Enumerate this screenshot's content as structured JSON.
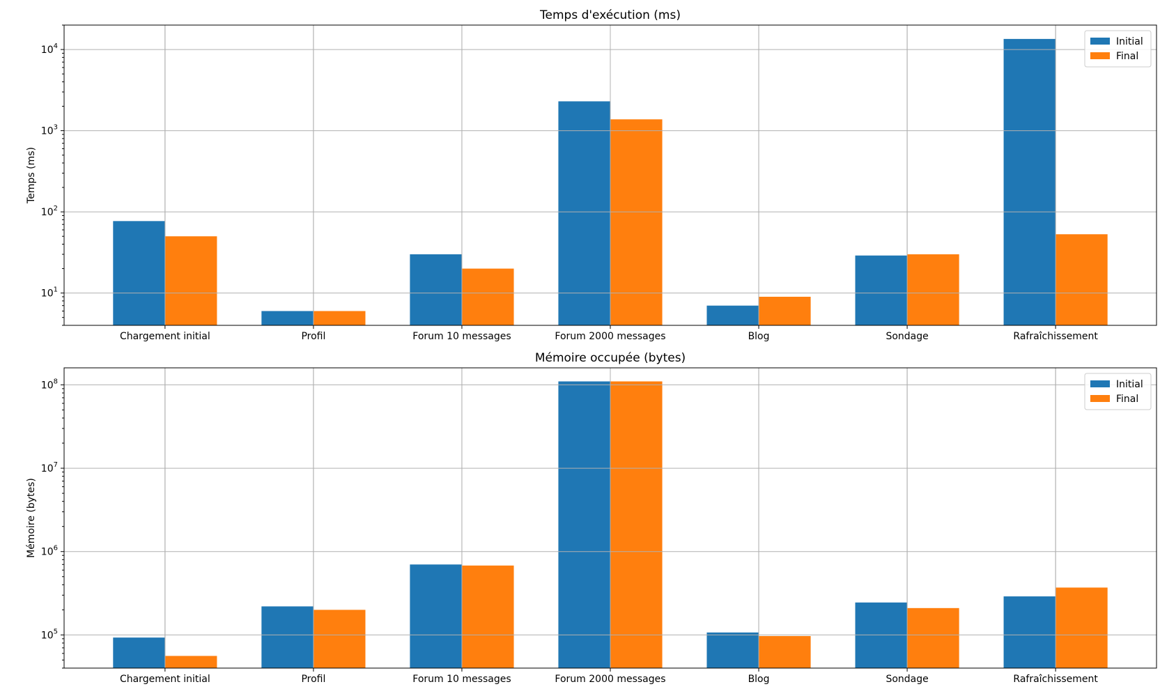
{
  "chart_data": [
    {
      "type": "bar",
      "title": "Temps d'exécution (ms)",
      "xlabel": "",
      "ylabel": "Temps (ms)",
      "yscale": "log",
      "ylim": [
        4,
        20000
      ],
      "ymajor_ticks": [
        10,
        100,
        1000,
        10000
      ],
      "ytick_labels": [
        {
          "base": "10",
          "exp": "1"
        },
        {
          "base": "10",
          "exp": "2"
        },
        {
          "base": "10",
          "exp": "3"
        },
        {
          "base": "10",
          "exp": "4"
        }
      ],
      "grid": true,
      "legend_position": "top-right",
      "categories": [
        "Chargement initial",
        "Profil",
        "Forum 10 messages",
        "Forum 2000 messages",
        "Blog",
        "Sondage",
        "Rafraîchissement"
      ],
      "series": [
        {
          "name": "Initial",
          "color": "#1f77b4",
          "values": [
            77,
            6,
            30,
            2300,
            7,
            29,
            13500
          ]
        },
        {
          "name": "Final",
          "color": "#ff7f0e",
          "values": [
            50,
            6,
            20,
            1380,
            9,
            30,
            53
          ]
        }
      ]
    },
    {
      "type": "bar",
      "title": "Mémoire occupée (bytes)",
      "xlabel": "",
      "ylabel": "Mémoire (bytes)",
      "yscale": "log",
      "ylim": [
        40000,
        160000000
      ],
      "ymajor_ticks": [
        100000,
        1000000,
        10000000,
        100000000
      ],
      "ytick_labels": [
        {
          "base": "10",
          "exp": "5"
        },
        {
          "base": "10",
          "exp": "6"
        },
        {
          "base": "10",
          "exp": "7"
        },
        {
          "base": "10",
          "exp": "8"
        }
      ],
      "grid": true,
      "legend_position": "top-right",
      "categories": [
        "Chargement initial",
        "Profil",
        "Forum 10 messages",
        "Forum 2000 messages",
        "Blog",
        "Sondage",
        "Rafraîchissement"
      ],
      "series": [
        {
          "name": "Initial",
          "color": "#1f77b4",
          "values": [
            93000,
            220000,
            700000,
            110000000,
            107000,
            245000,
            290000
          ]
        },
        {
          "name": "Final",
          "color": "#ff7f0e",
          "values": [
            56000,
            200000,
            680000,
            110000000,
            97000,
            210000,
            370000
          ]
        }
      ]
    }
  ]
}
